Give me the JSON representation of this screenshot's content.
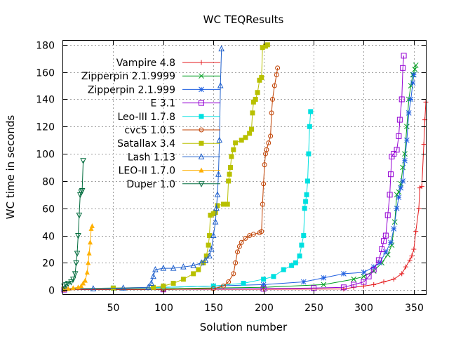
{
  "chart_data": {
    "type": "scatter",
    "title": "WC TEQResults",
    "xlabel": "Solution number",
    "ylabel": "WC time in seconds",
    "xlim": [
      0,
      362
    ],
    "ylim": [
      -3,
      183
    ],
    "xticks": [
      50,
      100,
      150,
      200,
      250,
      300,
      350
    ],
    "yticks": [
      0,
      20,
      40,
      60,
      80,
      100,
      120,
      140,
      160,
      180
    ],
    "grid": true,
    "legend_position": "top-left",
    "series": [
      {
        "name": "Vampire 4.8",
        "color": "#e41a1c",
        "marker": "plus",
        "points": [
          [
            1,
            0.5
          ],
          [
            100,
            0.5
          ],
          [
            200,
            0.6
          ],
          [
            280,
            0.8
          ],
          [
            290,
            2
          ],
          [
            300,
            3
          ],
          [
            310,
            4
          ],
          [
            320,
            6
          ],
          [
            330,
            8
          ],
          [
            338,
            12
          ],
          [
            342,
            17
          ],
          [
            346,
            22
          ],
          [
            348,
            25
          ],
          [
            350,
            30
          ],
          [
            352,
            43
          ],
          [
            355,
            60
          ],
          [
            356,
            75
          ],
          [
            358,
            76
          ],
          [
            360,
            107
          ],
          [
            361,
            125
          ],
          [
            362,
            138
          ]
        ]
      },
      {
        "name": "Zipperpin 2.1.9999",
        "color": "#009e20",
        "marker": "x",
        "points": [
          [
            1,
            0.5
          ],
          [
            100,
            1
          ],
          [
            200,
            2
          ],
          [
            260,
            4
          ],
          [
            290,
            8
          ],
          [
            300,
            10
          ],
          [
            310,
            14
          ],
          [
            318,
            20
          ],
          [
            324,
            26
          ],
          [
            328,
            33
          ],
          [
            331,
            50
          ],
          [
            333,
            70
          ],
          [
            335,
            72
          ],
          [
            337,
            78
          ],
          [
            339,
            90
          ],
          [
            341,
            100
          ],
          [
            343,
            120
          ],
          [
            345,
            140
          ],
          [
            347,
            150
          ],
          [
            349,
            158
          ],
          [
            351,
            162
          ],
          [
            352,
            165
          ]
        ]
      },
      {
        "name": "Zipperpin 2.1.999",
        "color": "#1f5fe0",
        "marker": "star",
        "points": [
          [
            1,
            0.5
          ],
          [
            100,
            2
          ],
          [
            150,
            3
          ],
          [
            200,
            4
          ],
          [
            240,
            6
          ],
          [
            260,
            9
          ],
          [
            280,
            12
          ],
          [
            300,
            13
          ],
          [
            310,
            17
          ],
          [
            316,
            20
          ],
          [
            322,
            28
          ],
          [
            327,
            35
          ],
          [
            330,
            45
          ],
          [
            333,
            60
          ],
          [
            335,
            68
          ],
          [
            337,
            75
          ],
          [
            339,
            80
          ],
          [
            341,
            95
          ],
          [
            343,
            110
          ],
          [
            345,
            130
          ],
          [
            347,
            140
          ],
          [
            349,
            152
          ],
          [
            350,
            158
          ]
        ]
      },
      {
        "name": "E 3.1",
        "color": "#9400d3",
        "marker": "square",
        "points": [
          [
            1,
            0.3
          ],
          [
            100,
            0.5
          ],
          [
            200,
            1
          ],
          [
            250,
            1.5
          ],
          [
            280,
            2
          ],
          [
            290,
            4
          ],
          [
            300,
            6
          ],
          [
            305,
            10
          ],
          [
            310,
            15
          ],
          [
            315,
            22
          ],
          [
            318,
            30
          ],
          [
            320,
            36
          ],
          [
            322,
            40
          ],
          [
            324,
            55
          ],
          [
            326,
            70
          ],
          [
            327,
            85
          ],
          [
            328,
            98
          ],
          [
            330,
            100
          ],
          [
            333,
            103
          ],
          [
            335,
            113
          ],
          [
            336,
            125
          ],
          [
            338,
            140
          ],
          [
            339,
            163
          ],
          [
            340,
            172
          ]
        ]
      },
      {
        "name": "Leo-III 1.7.8",
        "color": "#00e0e0",
        "marker": "fsquare",
        "points": [
          [
            1,
            1
          ],
          [
            50,
            1.5
          ],
          [
            100,
            2
          ],
          [
            150,
            3
          ],
          [
            180,
            5
          ],
          [
            200,
            8
          ],
          [
            210,
            10
          ],
          [
            220,
            15
          ],
          [
            228,
            18
          ],
          [
            232,
            20
          ],
          [
            236,
            25
          ],
          [
            238,
            33
          ],
          [
            240,
            40
          ],
          [
            241,
            60
          ],
          [
            242,
            65
          ],
          [
            243,
            70
          ],
          [
            244,
            80
          ],
          [
            245,
            100
          ],
          [
            246,
            120
          ],
          [
            247,
            131
          ]
        ]
      },
      {
        "name": "cvc5 1.0.5",
        "color": "#c04000",
        "marker": "circle",
        "points": [
          [
            1,
            0.5
          ],
          [
            100,
            0.5
          ],
          [
            150,
            1
          ],
          [
            160,
            3
          ],
          [
            165,
            6
          ],
          [
            170,
            12
          ],
          [
            172,
            20
          ],
          [
            174,
            28
          ],
          [
            176,
            32
          ],
          [
            178,
            35
          ],
          [
            182,
            38
          ],
          [
            186,
            40
          ],
          [
            190,
            41
          ],
          [
            196,
            42
          ],
          [
            198,
            43
          ],
          [
            199,
            63
          ],
          [
            200,
            78
          ],
          [
            201,
            92
          ],
          [
            202,
            100
          ],
          [
            203,
            103
          ],
          [
            205,
            108
          ],
          [
            207,
            113
          ],
          [
            208,
            130
          ],
          [
            209,
            140
          ],
          [
            211,
            150
          ],
          [
            213,
            158
          ],
          [
            214,
            163
          ]
        ]
      },
      {
        "name": "Satallax 3.4",
        "color": "#b8c000",
        "marker": "fsquare",
        "points": [
          [
            1,
            1
          ],
          [
            50,
            1.5
          ],
          [
            90,
            2
          ],
          [
            100,
            3
          ],
          [
            110,
            5
          ],
          [
            120,
            8
          ],
          [
            130,
            12
          ],
          [
            135,
            15
          ],
          [
            140,
            20
          ],
          [
            143,
            25
          ],
          [
            145,
            33
          ],
          [
            146,
            40
          ],
          [
            147,
            55
          ],
          [
            150,
            56
          ],
          [
            152,
            57
          ],
          [
            154,
            62
          ],
          [
            160,
            63
          ],
          [
            164,
            63
          ],
          [
            165,
            80
          ],
          [
            166,
            85
          ],
          [
            167,
            90
          ],
          [
            168,
            98
          ],
          [
            170,
            103
          ],
          [
            172,
            108
          ],
          [
            178,
            110
          ],
          [
            182,
            112
          ],
          [
            186,
            115
          ],
          [
            188,
            118
          ],
          [
            189,
            130
          ],
          [
            190,
            138
          ],
          [
            192,
            140
          ],
          [
            194,
            145
          ],
          [
            196,
            154
          ],
          [
            198,
            156
          ],
          [
            199,
            178
          ],
          [
            202,
            179
          ],
          [
            204,
            180
          ]
        ]
      },
      {
        "name": "Lash 1.13",
        "color": "#1e5fcc",
        "marker": "triangle",
        "points": [
          [
            1,
            1
          ],
          [
            30,
            1
          ],
          [
            60,
            1.5
          ],
          [
            85,
            2
          ],
          [
            88,
            5
          ],
          [
            90,
            10
          ],
          [
            92,
            15
          ],
          [
            100,
            16
          ],
          [
            110,
            16
          ],
          [
            120,
            17
          ],
          [
            130,
            18
          ],
          [
            138,
            20
          ],
          [
            142,
            22
          ],
          [
            146,
            25
          ],
          [
            148,
            30
          ],
          [
            150,
            40
          ],
          [
            152,
            50
          ],
          [
            153,
            60
          ],
          [
            154,
            70
          ],
          [
            155,
            85
          ],
          [
            156,
            110
          ],
          [
            157,
            150
          ],
          [
            158,
            177
          ]
        ]
      },
      {
        "name": "LEO-II 1.7.0",
        "color": "#ffb000",
        "marker": "ftriangle",
        "points": [
          [
            1,
            0.5
          ],
          [
            5,
            1
          ],
          [
            10,
            1.5
          ],
          [
            15,
            2
          ],
          [
            18,
            3
          ],
          [
            20,
            5
          ],
          [
            22,
            7
          ],
          [
            24,
            13
          ],
          [
            25,
            20
          ],
          [
            26,
            27
          ],
          [
            27,
            35
          ],
          [
            28,
            45
          ],
          [
            29,
            47
          ]
        ]
      },
      {
        "name": "Duper 1.0",
        "color": "#006b3c",
        "marker": "itriangle",
        "points": [
          [
            1,
            3
          ],
          [
            3,
            4
          ],
          [
            5,
            5
          ],
          [
            8,
            6
          ],
          [
            10,
            8
          ],
          [
            12,
            12
          ],
          [
            13,
            20
          ],
          [
            14,
            27
          ],
          [
            15,
            40
          ],
          [
            16,
            55
          ],
          [
            17,
            70
          ],
          [
            18,
            72
          ],
          [
            19,
            73
          ],
          [
            20,
            95
          ]
        ]
      }
    ]
  }
}
